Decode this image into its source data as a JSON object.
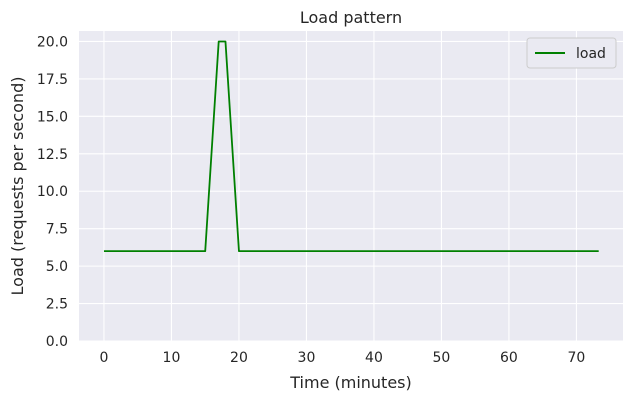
{
  "chart_data": {
    "type": "line",
    "title": "Load pattern",
    "xlabel": "Time (minutes)",
    "ylabel": "Load (requests per second)",
    "xlim": [
      -3.7,
      76.9
    ],
    "ylim": [
      0,
      20.7
    ],
    "x_ticks": [
      0,
      10,
      20,
      30,
      40,
      50,
      60,
      70
    ],
    "y_ticks": [
      0.0,
      2.5,
      5.0,
      7.5,
      10.0,
      12.5,
      15.0,
      17.5,
      20.0
    ],
    "y_tick_labels": [
      "0.0",
      "2.5",
      "5.0",
      "7.5",
      "10.0",
      "12.5",
      "15.0",
      "17.5",
      "20.0"
    ],
    "grid": true,
    "legend_position": "top-right",
    "series": [
      {
        "name": "load",
        "color": "#008000",
        "x": [
          0,
          15,
          17,
          18,
          20,
          73.3
        ],
        "y": [
          6,
          6,
          20,
          20,
          6,
          6
        ]
      }
    ]
  }
}
